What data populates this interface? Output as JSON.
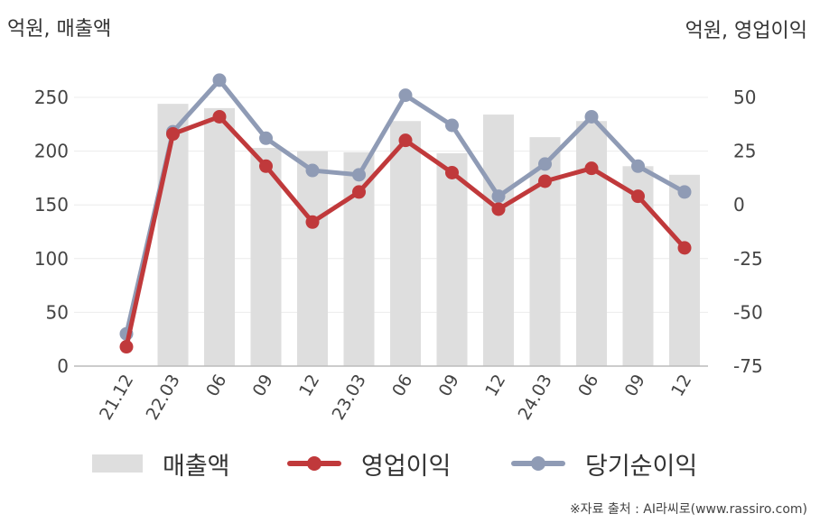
{
  "unit_left": "억원, 매출액",
  "unit_right": "억원, 영업이익",
  "source": "※자료 출처 : AI라씨로(www.rassiro.com)",
  "colors": {
    "bar": "#dedede",
    "op": "#c0393b",
    "net": "#8f9bb5",
    "grid": "#ececec",
    "axis": "#bbbbbb"
  },
  "legend": {
    "sales": "매출액",
    "op": "영업이익",
    "net": "당기순이익"
  },
  "chart_data": {
    "type": "bar",
    "categories": [
      "21.12",
      "22.03",
      "06",
      "09",
      "12",
      "23.03",
      "06",
      "09",
      "12",
      "24.03",
      "06",
      "09",
      "12"
    ],
    "series": [
      {
        "name": "매출액",
        "type": "bar",
        "axis": "left",
        "values": [
          null,
          244,
          240,
          203,
          200,
          199,
          228,
          198,
          234,
          213,
          228,
          186,
          178
        ]
      },
      {
        "name": "영업이익",
        "type": "line",
        "axis": "right",
        "values": [
          -66,
          33,
          41,
          18,
          -8,
          6,
          30,
          15,
          -2,
          11,
          17,
          4,
          -20
        ]
      },
      {
        "name": "당기순이익",
        "type": "line",
        "axis": "right",
        "values": [
          -60,
          34,
          58,
          31,
          16,
          14,
          51,
          37,
          4,
          19,
          41,
          18,
          6
        ]
      }
    ],
    "y_left": {
      "min": 0,
      "max": 250,
      "ticks": [
        0,
        50,
        100,
        150,
        200,
        250
      ]
    },
    "y_right": {
      "min": -75,
      "max": 50,
      "ticks": [
        -75,
        -50,
        -25,
        0,
        25,
        50
      ]
    },
    "grid": true,
    "legend_position": "bottom"
  }
}
